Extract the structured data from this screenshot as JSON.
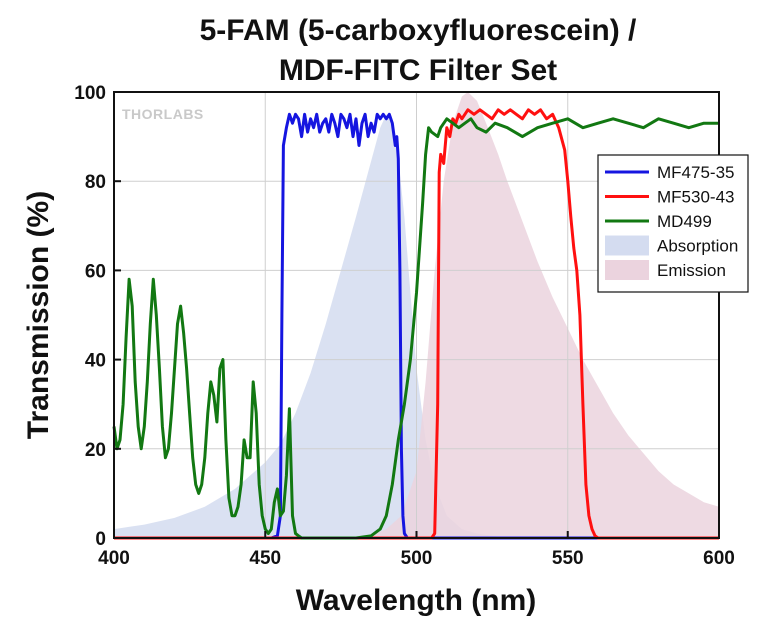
{
  "chart_data": {
    "type": "line",
    "title": "5-FAM (5-carboxyfluorescein) /",
    "subtitle": "MDF-FITC Filter Set",
    "xlabel": "Wavelength (nm)",
    "ylabel": "Transmission (%)",
    "xlim": [
      400,
      600
    ],
    "ylim": [
      0,
      100
    ],
    "xticks": [
      400,
      450,
      500,
      550,
      600
    ],
    "yticks": [
      0,
      20,
      40,
      60,
      80,
      100
    ],
    "grid": true,
    "legend_position": "right",
    "watermark": "THORLABS",
    "series": [
      {
        "name": "MF475-35",
        "kind": "line",
        "color": "#1515e0",
        "x": [
          452,
          454,
          455,
          455.5,
          456,
          457,
          458,
          459,
          460,
          461,
          462,
          463,
          464,
          465,
          466,
          467,
          468,
          469,
          470,
          471,
          472,
          473,
          474,
          475,
          476,
          477,
          478,
          479,
          480,
          481,
          482,
          483,
          484,
          485,
          486,
          487,
          488,
          489,
          490,
          491,
          492,
          493,
          493.5,
          494,
          494.5,
          495,
          495.5,
          496,
          497,
          600
        ],
        "y": [
          0,
          0.5,
          5,
          50,
          88,
          92,
          95,
          93,
          95,
          94,
          90,
          95,
          91,
          94,
          92,
          95,
          91,
          93,
          94,
          91,
          95,
          93,
          90,
          95,
          94,
          92,
          95,
          90,
          94,
          88,
          93,
          95,
          90,
          93,
          91,
          95,
          94,
          95,
          94,
          95,
          93,
          88,
          90,
          85,
          60,
          20,
          5,
          1,
          0,
          0
        ]
      },
      {
        "name": "MF530-43",
        "kind": "line",
        "color": "#ff1010",
        "x": [
          400,
          505,
          506,
          507,
          507.5,
          508,
          509,
          510,
          511,
          512,
          513,
          514,
          515,
          517,
          519,
          521,
          523,
          525,
          527,
          529,
          531,
          533,
          535,
          537,
          539,
          541,
          543,
          545,
          547,
          549,
          550,
          551,
          552,
          553,
          554,
          555,
          556,
          557,
          558,
          559,
          560,
          562,
          600
        ],
        "y": [
          0,
          0,
          1,
          30,
          82,
          86,
          84,
          92,
          90,
          94,
          93,
          95,
          94,
          96,
          95,
          96,
          95,
          94,
          96,
          95,
          96,
          95,
          94,
          96,
          95,
          96,
          94,
          95,
          92,
          87,
          80,
          72,
          65,
          60,
          50,
          30,
          12,
          5,
          2,
          0.5,
          0,
          0,
          0
        ]
      },
      {
        "name": "MD499",
        "kind": "line",
        "color": "#127812",
        "x": [
          400,
          401,
          402,
          403,
          404,
          405,
          406,
          407,
          408,
          409,
          410,
          411,
          412,
          413,
          414,
          415,
          416,
          417,
          418,
          419,
          420,
          421,
          422,
          423,
          424,
          425,
          426,
          427,
          428,
          429,
          430,
          431,
          432,
          433,
          434,
          435,
          436,
          437,
          438,
          439,
          440,
          441,
          442,
          443,
          444,
          445,
          446,
          447,
          448,
          449,
          450,
          451,
          452,
          453,
          454,
          455,
          456,
          457,
          458,
          459,
          460,
          461,
          462,
          463,
          465,
          470,
          480,
          485,
          488,
          490,
          492,
          494,
          496,
          498,
          500,
          502,
          503,
          504,
          505,
          507,
          508,
          510,
          512,
          514,
          516,
          518,
          520,
          523,
          526,
          530,
          535,
          540,
          545,
          550,
          555,
          560,
          565,
          570,
          575,
          580,
          585,
          590,
          595,
          600
        ],
        "y": [
          25,
          20,
          22,
          30,
          45,
          58,
          52,
          35,
          25,
          20,
          25,
          35,
          48,
          58,
          50,
          38,
          25,
          18,
          20,
          28,
          38,
          48,
          52,
          46,
          38,
          28,
          18,
          12,
          10,
          12,
          18,
          28,
          35,
          32,
          26,
          38,
          40,
          22,
          9,
          5,
          5,
          7,
          12,
          22,
          18,
          18,
          35,
          28,
          12,
          5,
          2,
          1,
          2,
          8,
          11,
          5,
          6,
          14,
          29,
          5,
          1,
          0.5,
          0,
          0,
          0,
          0,
          0,
          0.5,
          2,
          5,
          12,
          22,
          30,
          40,
          55,
          75,
          86,
          92,
          91,
          90,
          92,
          94,
          93,
          92,
          93,
          94,
          92,
          91,
          93,
          92,
          90,
          92,
          93,
          94,
          92,
          93,
          94,
          93,
          92,
          94,
          93,
          92,
          93,
          93
        ]
      },
      {
        "name": "Absorption",
        "kind": "area",
        "color": "#d4dcf0",
        "x": [
          400,
          410,
          420,
          430,
          440,
          450,
          455,
          460,
          465,
          470,
          475,
          480,
          484,
          488,
          490,
          492,
          494,
          496,
          498,
          500,
          503,
          506,
          510,
          515,
          520,
          525,
          530,
          600
        ],
        "y": [
          2,
          3,
          4.5,
          7,
          11,
          17,
          21,
          28,
          37,
          48,
          60,
          72,
          82,
          92,
          95,
          93,
          85,
          72,
          55,
          38,
          22,
          12,
          5,
          2,
          1,
          0.5,
          0,
          0
        ]
      },
      {
        "name": "Emission",
        "kind": "area",
        "color": "#ebd3de",
        "x": [
          400,
          480,
          485,
          490,
          495,
          500,
          503,
          506,
          509,
          512,
          515,
          517,
          520,
          523,
          527,
          530,
          535,
          540,
          545,
          550,
          555,
          560,
          565,
          570,
          575,
          580,
          585,
          590,
          595,
          600
        ],
        "y": [
          0,
          0,
          0.5,
          2,
          5,
          15,
          35,
          60,
          80,
          93,
          99,
          100,
          98,
          93,
          86,
          80,
          71,
          62,
          54,
          47,
          40,
          34,
          28,
          23,
          19,
          15,
          12,
          10,
          8,
          7
        ]
      }
    ]
  }
}
